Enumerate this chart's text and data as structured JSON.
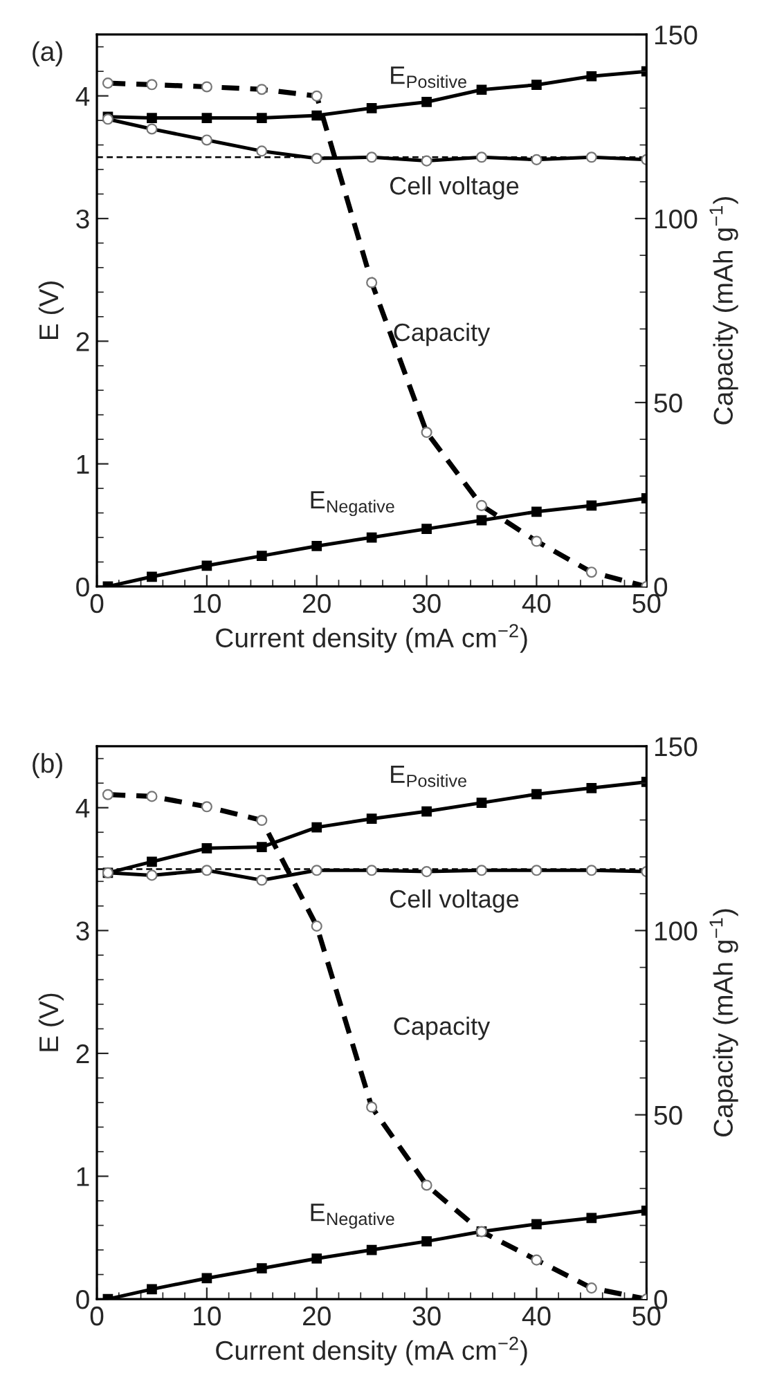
{
  "chart_data": [
    {
      "type": "line",
      "title": "(a)",
      "xlabel": "Current density (mA cm$^{−2}$)",
      "ylabel": "E (V)",
      "y2label": "Capacity (mAh g$^{−1}$)",
      "x": [
        1,
        5,
        10,
        15,
        20,
        25,
        30,
        35,
        40,
        45,
        50
      ],
      "xlim": [
        0,
        50
      ],
      "xticks": [
        0,
        10,
        20,
        30,
        40,
        50
      ],
      "ylim": [
        0,
        4.5
      ],
      "yticks": [
        0,
        1,
        2,
        3,
        4
      ],
      "y2lim": [
        0,
        150
      ],
      "y2ticks": [
        0,
        50,
        100,
        150
      ],
      "grid": false,
      "legend": false,
      "ref_lines": [
        {
          "axis": "y",
          "value": 3.5,
          "line_style": "dashed",
          "color": "#000000"
        }
      ],
      "series": [
        {
          "name": "E$_{Positive}$",
          "color": "#000000",
          "marker": "square",
          "line_style": "solid",
          "axis": "y",
          "values": [
            3.83,
            3.82,
            3.82,
            3.82,
            3.84,
            3.9,
            3.95,
            4.05,
            4.09,
            4.16,
            4.2
          ]
        },
        {
          "name": "Cell voltage",
          "color": "#000000",
          "marker": "circle",
          "line_style": "solid",
          "axis": "y",
          "values": [
            3.81,
            3.73,
            3.64,
            3.55,
            3.49,
            3.5,
            3.47,
            3.5,
            3.48,
            3.5,
            3.48
          ]
        },
        {
          "name": "Capacity",
          "color": "#000000",
          "marker": "circle",
          "line_style": "dashed",
          "axis": "y2",
          "values": [
            136.8,
            136.4,
            135.8,
            135.1,
            133.3,
            82.6,
            41.9,
            22.0,
            12.3,
            3.9,
            0
          ]
        },
        {
          "name": "E$_{Negative}$",
          "color": "#000000",
          "marker": "square",
          "line_style": "solid",
          "axis": "y",
          "values": [
            0,
            0.08,
            0.17,
            0.25,
            0.33,
            0.4,
            0.47,
            0.54,
            0.61,
            0.66,
            0.72
          ]
        }
      ]
    },
    {
      "type": "line",
      "title": "(b)",
      "xlabel": "Current density (mA cm$^{−2}$)",
      "ylabel": "E (V)",
      "y2label": "Capacity (mAh g$^{−1}$)",
      "x": [
        1,
        5,
        10,
        15,
        20,
        25,
        30,
        35,
        40,
        45,
        50
      ],
      "xlim": [
        0,
        50
      ],
      "xticks": [
        0,
        10,
        20,
        30,
        40,
        50
      ],
      "ylim": [
        0,
        4.5
      ],
      "yticks": [
        0,
        1,
        2,
        3,
        4
      ],
      "y2lim": [
        0,
        150
      ],
      "y2ticks": [
        0,
        50,
        100,
        150
      ],
      "grid": false,
      "legend": false,
      "ref_lines": [
        {
          "axis": "y",
          "value": 3.5,
          "line_style": "dashed",
          "color": "#000000"
        }
      ],
      "series": [
        {
          "name": "E$_{Positive}$",
          "color": "#000000",
          "marker": "square",
          "line_style": "solid",
          "axis": "y",
          "values": [
            3.47,
            3.56,
            3.67,
            3.68,
            3.84,
            3.91,
            3.97,
            4.04,
            4.11,
            4.16,
            4.21
          ]
        },
        {
          "name": "Cell voltage",
          "color": "#000000",
          "marker": "circle",
          "line_style": "solid",
          "axis": "y",
          "values": [
            3.47,
            3.45,
            3.49,
            3.41,
            3.49,
            3.49,
            3.48,
            3.49,
            3.49,
            3.49,
            3.48
          ]
        },
        {
          "name": "Capacity",
          "color": "#000000",
          "marker": "circle",
          "line_style": "dashed",
          "axis": "y2",
          "values": [
            136.9,
            136.4,
            133.6,
            129.9,
            101.2,
            52.1,
            30.9,
            18.3,
            10.6,
            3.0,
            0
          ]
        },
        {
          "name": "E$_{Negative}$",
          "color": "#000000",
          "marker": "square",
          "line_style": "solid",
          "axis": "y",
          "values": [
            0,
            0.08,
            0.17,
            0.25,
            0.33,
            0.4,
            0.47,
            0.55,
            0.61,
            0.66,
            0.72
          ]
        }
      ]
    }
  ]
}
